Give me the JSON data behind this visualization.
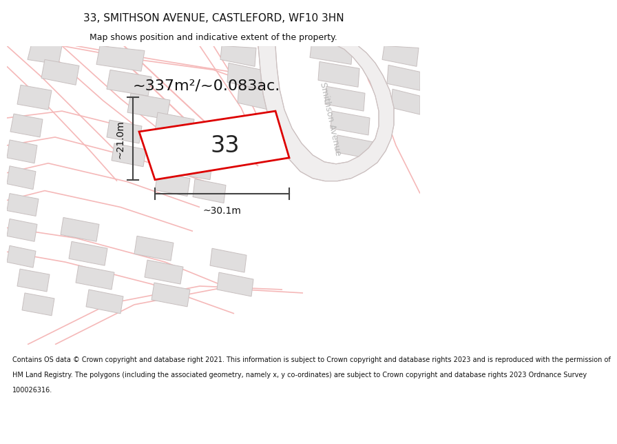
{
  "title": "33, SMITHSON AVENUE, CASTLEFORD, WF10 3HN",
  "subtitle": "Map shows position and indicative extent of the property.",
  "area_label": "~337m²/~0.083ac.",
  "property_number": "33",
  "dim_width": "~30.1m",
  "dim_height": "~21.0m",
  "street_label": "Smithson Avenue",
  "footer_lines": [
    "Contains OS data © Crown copyright and database right 2021. This information is subject to Crown copyright and database rights 2023 and is reproduced with the permission of",
    "HM Land Registry. The polygons (including the associated geometry, namely x, y co-ordinates) are subject to Crown copyright and database rights 2023 Ordnance Survey",
    "100026316."
  ],
  "map_bg": "#ffffff",
  "building_fill": "#e0dede",
  "building_edge": "#c8c0c0",
  "road_color": "#f5b8b8",
  "road_lw": 1.2,
  "smithson_fill": "#f0f0f0",
  "smithson_edge": "#d0c8c8",
  "property_edge": "#dd0000",
  "property_fill": "#ffffff",
  "dim_color": "#444444",
  "street_label_color": "#b8b8b8",
  "title_fontsize": 11,
  "subtitle_fontsize": 9,
  "footer_fontsize": 7,
  "area_fontsize": 16,
  "prop_num_fontsize": 24,
  "dim_fontsize": 10
}
